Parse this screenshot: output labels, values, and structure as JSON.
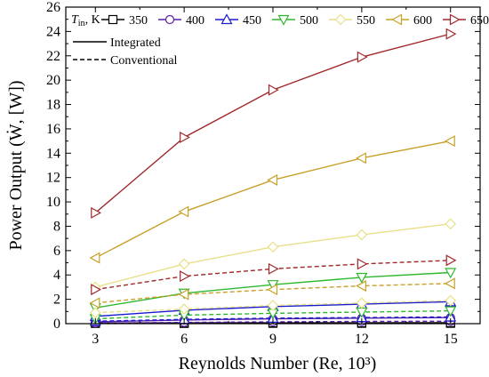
{
  "chart_data": {
    "type": "line",
    "xlabel": "Reynolds Number (Re, 10³)",
    "ylabel": "Power Output (Ẇ, [W])",
    "x": [
      3,
      6,
      9,
      12,
      15
    ],
    "xlim": [
      2,
      16
    ],
    "ylim": [
      0,
      26
    ],
    "xticks": [
      3,
      6,
      9,
      12,
      15
    ],
    "yticks": [
      0,
      2,
      4,
      6,
      8,
      10,
      12,
      14,
      16,
      18,
      20,
      22,
      24,
      26
    ],
    "grid": false,
    "legend_title": "T",
    "legend_title_sub": "in",
    "legend_title_suffix": ", K",
    "legend_position": "top-left",
    "style_legend": [
      {
        "label": "Integrated",
        "dash": "solid"
      },
      {
        "label": "Conventional",
        "dash": "dashed"
      }
    ],
    "series": [
      {
        "name": "350",
        "color": "#000000",
        "marker": "square",
        "integrated": [
          0.05,
          0.06,
          0.07,
          0.07,
          0.08
        ],
        "conventional": [
          0.02,
          0.02,
          0.03,
          0.03,
          0.03
        ]
      },
      {
        "name": "400",
        "color": "#5a1fa8",
        "marker": "circle",
        "integrated": [
          0.15,
          0.3,
          0.4,
          0.45,
          0.5
        ],
        "conventional": [
          0.05,
          0.1,
          0.15,
          0.18,
          0.2
        ]
      },
      {
        "name": "450",
        "color": "#1a1ad0",
        "marker": "triangle-up",
        "integrated": [
          0.6,
          1.1,
          1.4,
          1.6,
          1.8
        ],
        "conventional": [
          0.2,
          0.35,
          0.45,
          0.5,
          0.55
        ]
      },
      {
        "name": "500",
        "color": "#2eb82e",
        "marker": "triangle-down",
        "integrated": [
          1.3,
          2.5,
          3.2,
          3.8,
          4.2
        ],
        "conventional": [
          0.4,
          0.7,
          0.85,
          0.95,
          1.05
        ]
      },
      {
        "name": "550",
        "color": "#e8e089",
        "marker": "diamond",
        "integrated": [
          3.0,
          4.9,
          6.3,
          7.3,
          8.2
        ],
        "conventional": [
          0.9,
          1.2,
          1.5,
          1.7,
          1.9
        ]
      },
      {
        "name": "600",
        "color": "#c8a02a",
        "marker": "triangle-left",
        "integrated": [
          5.4,
          9.2,
          11.8,
          13.6,
          15.0
        ],
        "conventional": [
          1.7,
          2.4,
          2.8,
          3.1,
          3.3
        ]
      },
      {
        "name": "650",
        "color": "#a0282a",
        "marker": "triangle-right",
        "integrated": [
          9.1,
          15.3,
          19.2,
          21.9,
          23.8
        ],
        "conventional": [
          2.8,
          3.9,
          4.5,
          4.9,
          5.2
        ]
      }
    ]
  }
}
